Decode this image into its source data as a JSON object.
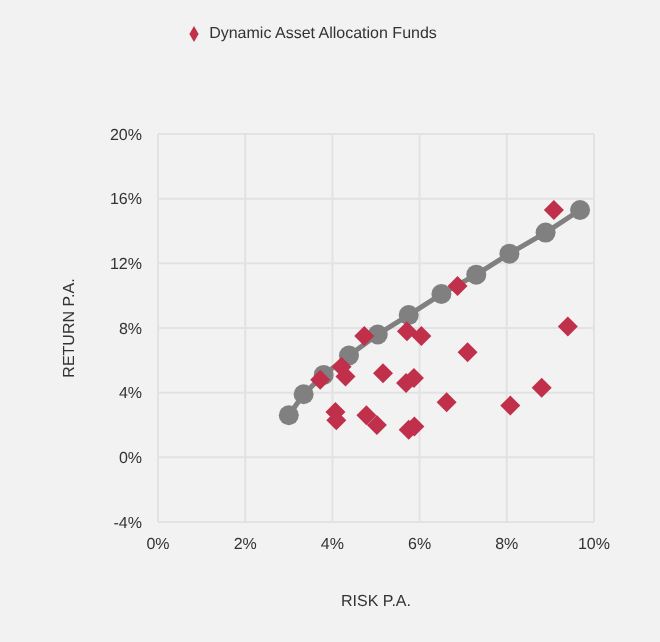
{
  "chart_data": {
    "type": "scatter",
    "xlabel": "RISK P.A.",
    "ylabel": "RETURN P.A.",
    "xlim": [
      0,
      10
    ],
    "xticks": [
      {
        "value": 0,
        "label": "0%"
      },
      {
        "value": 2,
        "label": "2%"
      },
      {
        "value": 4,
        "label": "4%"
      },
      {
        "value": 6,
        "label": "6%"
      },
      {
        "value": 8,
        "label": "8%"
      },
      {
        "value": 10,
        "label": "10%"
      }
    ],
    "ylim": [
      -4,
      20
    ],
    "yticks": [
      {
        "value": -4,
        "label": "-4%"
      },
      {
        "value": 0,
        "label": "0%"
      },
      {
        "value": 4,
        "label": "4%"
      },
      {
        "value": 8,
        "label": "8%"
      },
      {
        "value": 12,
        "label": "12%"
      },
      {
        "value": 16,
        "label": "16%"
      },
      {
        "value": 20,
        "label": "20%"
      }
    ],
    "grid": true,
    "legend": "top",
    "series": [
      {
        "type": "line",
        "color": "#808080",
        "marker": "circle",
        "line_style": "solid",
        "x": [
          3.0,
          3.34,
          3.8,
          4.38,
          5.04,
          5.75,
          6.5,
          7.3,
          8.06,
          8.89,
          9.68
        ],
        "values": [
          2.6,
          3.9,
          5.1,
          6.3,
          7.6,
          8.8,
          10.1,
          11.3,
          12.6,
          13.9,
          15.3
        ]
      },
      {
        "name": "Dynamic Asset Allocation Funds",
        "color": "#c0304a",
        "marker": "diamond",
        "x": [
          9.08,
          6.87,
          9.4,
          5.71,
          6.04,
          4.73,
          7.1,
          4.21,
          3.72,
          4.3,
          5.16,
          5.69,
          5.87,
          6.62,
          8.08,
          8.8,
          4.07,
          4.09,
          4.78,
          5.02,
          5.75,
          5.88
        ],
        "values": [
          15.3,
          10.6,
          8.1,
          7.8,
          7.5,
          7.5,
          6.5,
          5.6,
          4.8,
          5.0,
          5.2,
          4.6,
          4.9,
          3.4,
          3.2,
          4.3,
          2.8,
          2.3,
          2.6,
          2.0,
          1.7,
          1.9
        ]
      }
    ]
  }
}
